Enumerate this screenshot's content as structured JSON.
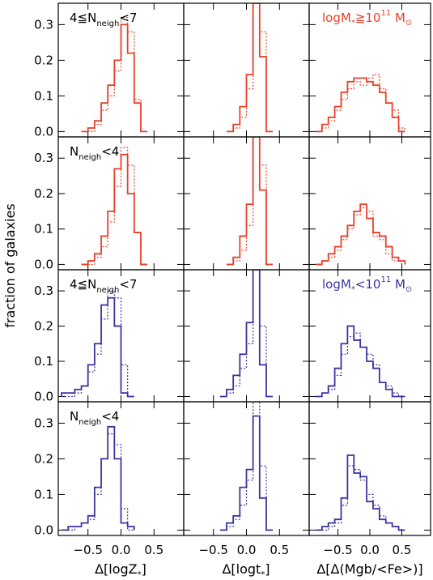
{
  "figure": {
    "ylabel": "fraction of galaxies",
    "row_labels": [
      {
        "text": "4≦N",
        "sub": "neigh",
        "tail": "<7"
      },
      {
        "text": "N",
        "sub": "neigh",
        "tail": "<4"
      },
      {
        "text": "4≦N",
        "sub": "neigh",
        "tail": "<7"
      },
      {
        "text": "N",
        "sub": "neigh",
        "tail": "<4"
      }
    ],
    "mass_labels": [
      {
        "pre": "logM",
        "sub": "*",
        "mid": "≧10",
        "sup": "11",
        "post": "M",
        "sub2": "⊙",
        "row": 0,
        "color": "#e8402a"
      },
      {
        "pre": "logM",
        "sub": "*",
        "mid": "<10",
        "sup": "11",
        "post": "M",
        "sub2": "⊙",
        "row": 2,
        "color": "#3a35a0"
      }
    ],
    "xlabels": [
      "Δ[logZ*]",
      "Δ[logt*]",
      "Δ[Δ(Mgb/<Fe>)]"
    ],
    "colors": {
      "high_mass": "#e8402a",
      "low_mass": "#3a35a0"
    }
  },
  "chart_data": {
    "type": "histogram",
    "grid": false,
    "xlim": [
      -0.95,
      0.95
    ],
    "ylim": [
      -0.015,
      0.36
    ],
    "xticks": [
      -0.5,
      0.0,
      0.5
    ],
    "xtick_labels": [
      "−0.5",
      "0.0",
      "0.5"
    ],
    "yticks": [
      0.0,
      0.1,
      0.2,
      0.3
    ],
    "ytick_labels": [
      "0.0",
      "0.1",
      "0.2",
      "0.3"
    ],
    "bin_width": 0.1,
    "panels": [
      [
        {
          "start": -0.6,
          "solid": [
            0.0,
            0.01,
            0.03,
            0.08,
            0.13,
            0.2,
            0.3,
            0.22,
            0.08,
            0.0
          ],
          "dotted": [
            0.0,
            0.0,
            0.02,
            0.06,
            0.1,
            0.17,
            0.32,
            0.28,
            0.09,
            0.0
          ]
        },
        {
          "start": -0.3,
          "solid": [
            0.0,
            0.02,
            0.07,
            0.16,
            0.36,
            0.21,
            0.0
          ],
          "dotted": [
            0.0,
            0.01,
            0.04,
            0.12,
            0.36,
            0.28,
            0.0
          ]
        },
        {
          "start": -0.85,
          "solid": [
            0.0,
            0.02,
            0.04,
            0.07,
            0.11,
            0.14,
            0.15,
            0.15,
            0.14,
            0.13,
            0.11,
            0.08,
            0.04,
            0.0
          ],
          "dotted": [
            0.0,
            0.01,
            0.03,
            0.06,
            0.09,
            0.12,
            0.14,
            0.13,
            0.15,
            0.16,
            0.12,
            0.08,
            0.06,
            0.01
          ]
        }
      ],
      [
        {
          "start": -0.6,
          "solid": [
            0.0,
            0.01,
            0.03,
            0.08,
            0.15,
            0.27,
            0.31,
            0.2,
            0.09,
            0.0
          ],
          "dotted": [
            0.0,
            0.0,
            0.02,
            0.05,
            0.12,
            0.22,
            0.33,
            0.28,
            0.09,
            0.0
          ]
        },
        {
          "start": -0.3,
          "solid": [
            0.0,
            0.02,
            0.08,
            0.17,
            0.36,
            0.21,
            0.0
          ],
          "dotted": [
            0.0,
            0.01,
            0.04,
            0.11,
            0.36,
            0.28,
            0.0
          ]
        },
        {
          "start": -0.85,
          "solid": [
            0.0,
            0.01,
            0.03,
            0.05,
            0.08,
            0.11,
            0.15,
            0.17,
            0.13,
            0.09,
            0.08,
            0.05,
            0.02,
            0.01
          ],
          "dotted": [
            0.0,
            0.01,
            0.02,
            0.04,
            0.07,
            0.1,
            0.14,
            0.16,
            0.15,
            0.08,
            0.07,
            0.03,
            0.01,
            0.01
          ]
        }
      ],
      [
        {
          "start": -0.9,
          "solid": [
            0.01,
            0.01,
            0.02,
            0.03,
            0.09,
            0.15,
            0.26,
            0.28,
            0.2,
            0.01,
            0.0
          ],
          "dotted": [
            0.0,
            0.0,
            0.01,
            0.03,
            0.07,
            0.12,
            0.22,
            0.3,
            0.28,
            0.09,
            0.0
          ]
        },
        {
          "start": -0.4,
          "solid": [
            0.0,
            0.02,
            0.06,
            0.12,
            0.21,
            0.36,
            0.09,
            0.0
          ],
          "dotted": [
            0.0,
            0.01,
            0.03,
            0.08,
            0.15,
            0.36,
            0.2,
            0.0
          ]
        },
        {
          "start": -0.85,
          "solid": [
            0.0,
            0.01,
            0.03,
            0.08,
            0.15,
            0.2,
            0.16,
            0.14,
            0.1,
            0.08,
            0.04,
            0.02,
            0.0,
            0.0
          ],
          "dotted": [
            0.0,
            0.01,
            0.02,
            0.06,
            0.12,
            0.17,
            0.18,
            0.14,
            0.12,
            0.09,
            0.04,
            0.03,
            0.01,
            0.0
          ]
        }
      ],
      [
        {
          "start": -0.9,
          "solid": [
            0.0,
            0.01,
            0.01,
            0.02,
            0.04,
            0.12,
            0.2,
            0.29,
            0.2,
            0.02,
            0.01
          ],
          "dotted": [
            0.0,
            0.0,
            0.01,
            0.02,
            0.03,
            0.1,
            0.2,
            0.27,
            0.24,
            0.06,
            0.0
          ]
        },
        {
          "start": -0.4,
          "solid": [
            0.0,
            0.02,
            0.04,
            0.12,
            0.17,
            0.32,
            0.09,
            0.0
          ],
          "dotted": [
            0.0,
            0.01,
            0.03,
            0.07,
            0.14,
            0.36,
            0.18,
            0.0
          ]
        },
        {
          "start": -0.85,
          "solid": [
            0.0,
            0.01,
            0.02,
            0.03,
            0.09,
            0.21,
            0.16,
            0.15,
            0.08,
            0.06,
            0.03,
            0.02,
            0.01,
            0.0
          ],
          "dotted": [
            0.0,
            0.0,
            0.01,
            0.02,
            0.07,
            0.18,
            0.17,
            0.14,
            0.1,
            0.07,
            0.04,
            0.02,
            0.01,
            0.0
          ]
        }
      ]
    ]
  }
}
